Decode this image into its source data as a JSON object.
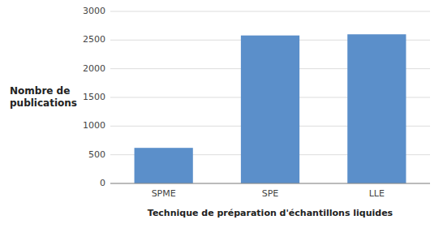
{
  "chart_data": {
    "type": "bar",
    "categories": [
      "SPME",
      "SPE",
      "LLE"
    ],
    "values": [
      620,
      2580,
      2600
    ],
    "color": "#5b8fca",
    "xlabel": "Technique de préparation d'échantillons liquides",
    "ylabel": "Nombre de\npublications",
    "ylim": [
      0,
      3000
    ],
    "yticks": [
      0,
      500,
      1000,
      1500,
      2000,
      2500,
      3000
    ],
    "grid": true
  }
}
